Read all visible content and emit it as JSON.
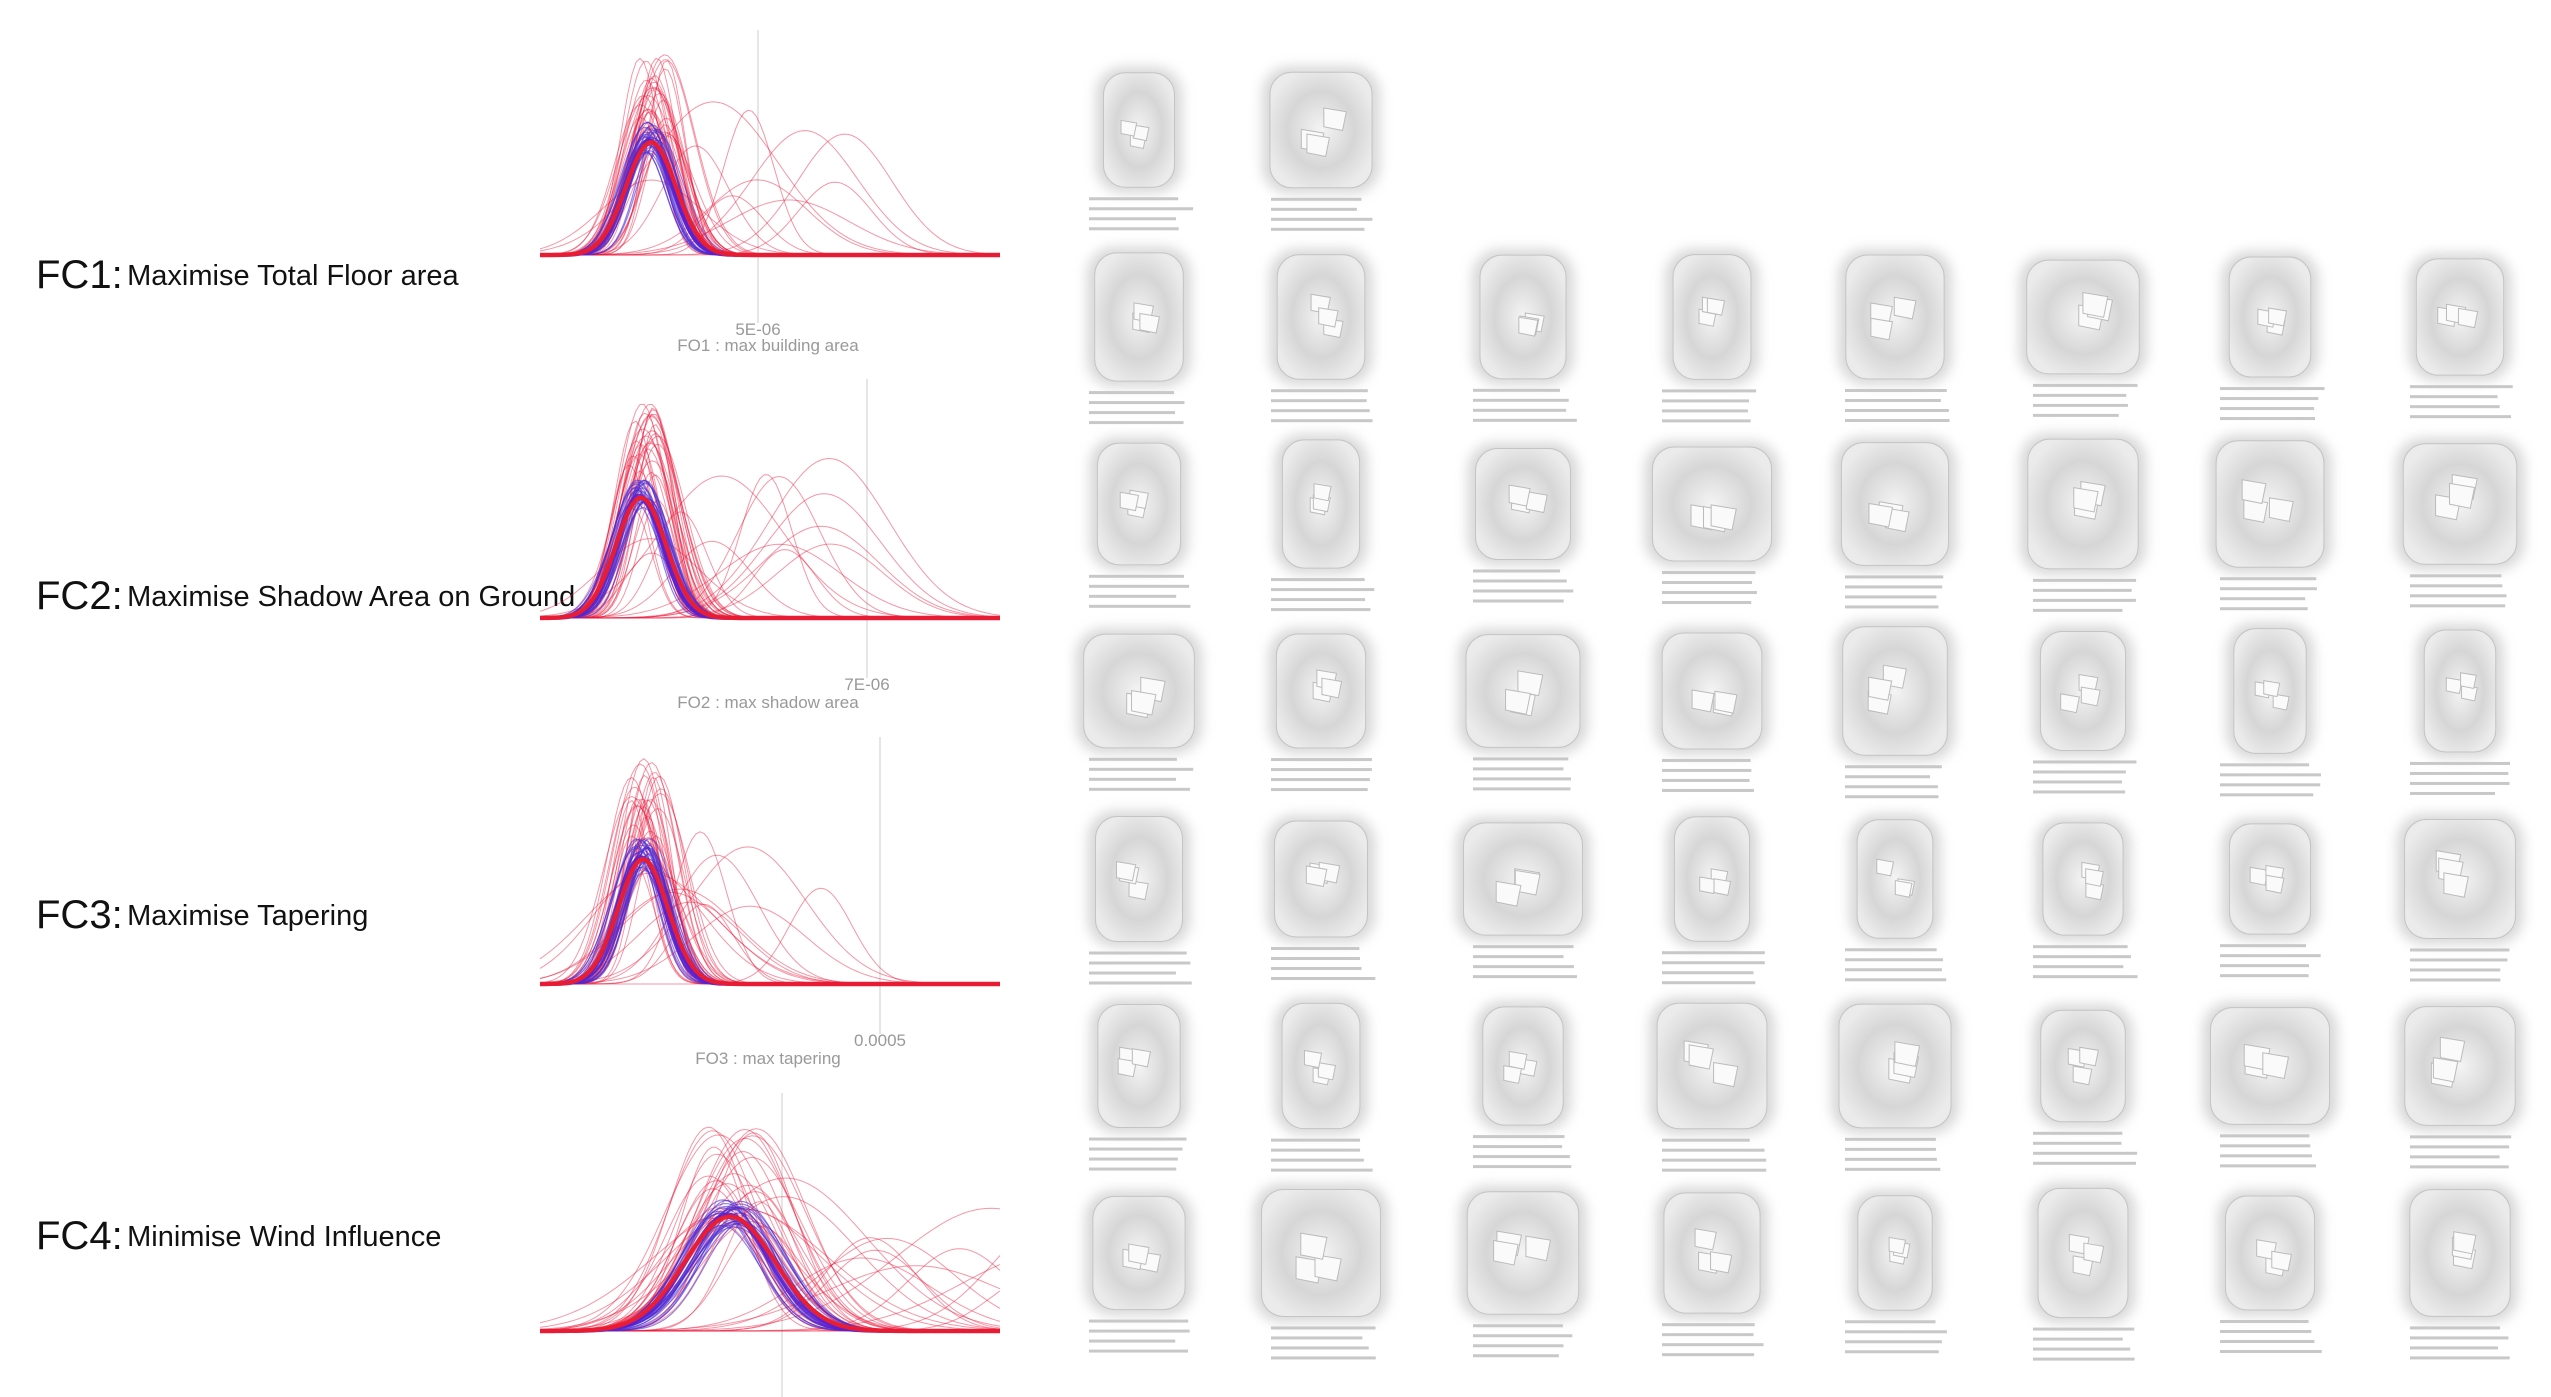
{
  "criteria": [
    {
      "code": "FC1:",
      "title": "Maximise Total Floor area",
      "tick": "5E-06",
      "axis_label": "FO1 : max building area"
    },
    {
      "code": "FC2:",
      "title": "Maximise Shadow Area on Ground",
      "tick": "7E-06",
      "axis_label": "FO2 : max shadow area"
    },
    {
      "code": "FC3:",
      "title": "Maximise Tapering",
      "tick": "0.0005",
      "axis_label": "FO3 : max tapering"
    },
    {
      "code": "FC4:",
      "title": "Minimise Wind Influence"
    }
  ]
}
